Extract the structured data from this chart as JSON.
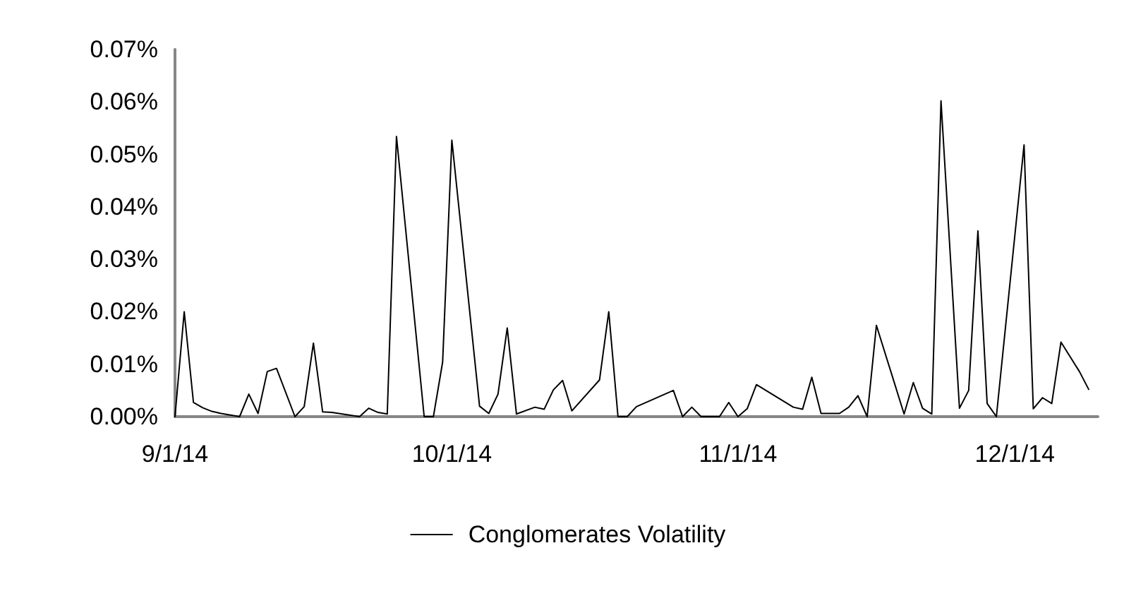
{
  "chart_data": {
    "type": "line",
    "legend": "bottom",
    "grid": false,
    "marker": "none",
    "line_style": "solid",
    "xlim": [
      "2014-09-01",
      "2014-12-10"
    ],
    "xticks": [
      {
        "value": "2014-09-01",
        "label": "9/1/14"
      },
      {
        "value": "2014-10-01",
        "label": "10/1/14"
      },
      {
        "value": "2014-11-01",
        "label": "11/1/14"
      },
      {
        "value": "2014-12-01",
        "label": "12/1/14"
      }
    ],
    "ylim": [
      0,
      0.07
    ],
    "yticks": [
      {
        "value": 0,
        "label": "0.00%"
      },
      {
        "value": 0.01,
        "label": "0.01%"
      },
      {
        "value": 0.02,
        "label": "0.02%"
      },
      {
        "value": 0.03,
        "label": "0.03%"
      },
      {
        "value": 0.04,
        "label": "0.04%"
      },
      {
        "value": 0.05,
        "label": "0.05%"
      },
      {
        "value": 0.06,
        "label": "0.06%"
      },
      {
        "value": 0.07,
        "label": "0.07%"
      }
    ],
    "x": [
      "2014-09-01",
      "2014-09-02",
      "2014-09-03",
      "2014-09-04",
      "2014-09-05",
      "2014-09-06",
      "2014-09-08",
      "2014-09-09",
      "2014-09-10",
      "2014-09-11",
      "2014-09-12",
      "2014-09-14",
      "2014-09-15",
      "2014-09-16",
      "2014-09-17",
      "2014-09-18",
      "2014-09-21",
      "2014-09-22",
      "2014-09-23",
      "2014-09-24",
      "2014-09-25",
      "2014-09-28",
      "2014-09-29",
      "2014-09-30",
      "2014-10-01",
      "2014-10-04",
      "2014-10-05",
      "2014-10-06",
      "2014-10-07",
      "2014-10-08",
      "2014-10-10",
      "2014-10-11",
      "2014-10-12",
      "2014-10-13",
      "2014-10-14",
      "2014-10-17",
      "2014-10-18",
      "2014-10-19",
      "2014-10-20",
      "2014-10-21",
      "2014-10-25",
      "2014-10-26",
      "2014-10-27",
      "2014-10-28",
      "2014-10-30",
      "2014-10-31",
      "2014-11-01",
      "2014-11-02",
      "2014-11-03",
      "2014-11-07",
      "2014-11-08",
      "2014-11-09",
      "2014-11-10",
      "2014-11-12",
      "2014-11-13",
      "2014-11-14",
      "2014-11-15",
      "2014-11-16",
      "2014-11-19",
      "2014-11-20",
      "2014-11-21",
      "2014-11-22",
      "2014-11-23",
      "2014-11-25",
      "2014-11-26",
      "2014-11-27",
      "2014-11-28",
      "2014-11-29",
      "2014-12-02",
      "2014-12-03",
      "2014-12-04",
      "2014-12-05",
      "2014-12-06",
      "2014-12-08",
      "2014-12-09"
    ],
    "series": [
      {
        "name": "Conglomerates Volatility",
        "color": "#000000",
        "values": [
          0,
          0.02,
          0.0027,
          0.0017,
          0.001,
          0.0006,
          0,
          0.0043,
          0.0006,
          0.0086,
          0.0092,
          0,
          0.0019,
          0.014,
          0.0009,
          0.0008,
          0,
          0.0016,
          0.0008,
          0.0005,
          0.0534,
          0,
          0,
          0.0104,
          0.0527,
          0.002,
          0.0006,
          0.0043,
          0.0169,
          0.0005,
          0.0018,
          0.0014,
          0.0051,
          0.0069,
          0.0011,
          0.007,
          0.02,
          0,
          0,
          0.0019,
          0.005,
          0,
          0.0018,
          0,
          0,
          0.0027,
          0,
          0.0015,
          0.0061,
          0.0018,
          0.0014,
          0.0075,
          0.0006,
          0.0006,
          0.0018,
          0.004,
          0,
          0.0174,
          0.0005,
          0.0065,
          0.0016,
          0.0005,
          0.0602,
          0.0016,
          0.005,
          0.0354,
          0.0025,
          0,
          0.0518,
          0.0015,
          0.0036,
          0.0025,
          0.0142,
          0.0086,
          0.0052
        ]
      }
    ]
  }
}
